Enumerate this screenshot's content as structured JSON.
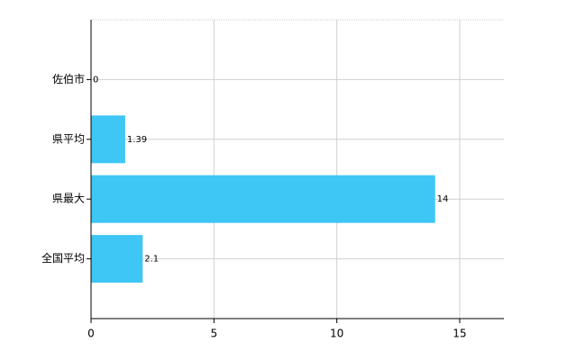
{
  "chart_data": {
    "type": "barh",
    "categories": [
      "佐伯市",
      "県平均",
      "県最大",
      "全国平均"
    ],
    "values": [
      0,
      1.39,
      14,
      2.1
    ],
    "color": "#3ec6f5",
    "xlim": [
      0,
      16.8
    ],
    "xticks": [
      0,
      5,
      10,
      15
    ],
    "grid": true
  }
}
